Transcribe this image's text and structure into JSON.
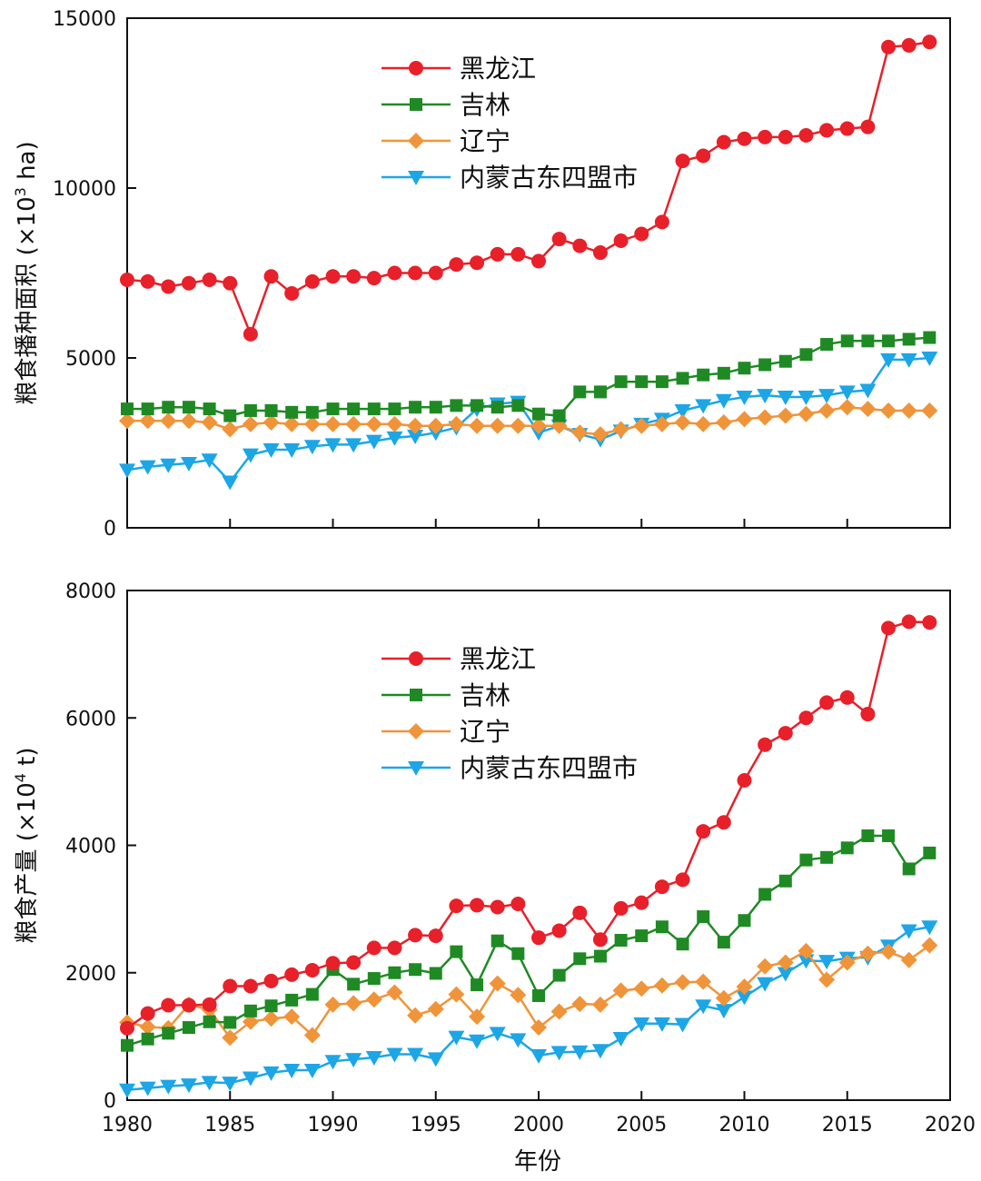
{
  "xlabel": "年份",
  "series_meta": [
    {
      "name": "黑龙江",
      "color": "#e8202a",
      "marker": "circle"
    },
    {
      "name": "吉林",
      "color": "#1f8a24",
      "marker": "square"
    },
    {
      "name": "辽宁",
      "color": "#f0943a",
      "marker": "diamond"
    },
    {
      "name": "内蒙古东四盟市",
      "color": "#1ca6e6",
      "marker": "triangle-down"
    }
  ],
  "chart_data": [
    {
      "type": "line",
      "ylabel_main": "粮食播种面积 (×10",
      "ylabel_sup": "3",
      "ylabel_tail": " ha)",
      "x": [
        1980,
        1981,
        1982,
        1983,
        1984,
        1985,
        1986,
        1987,
        1988,
        1989,
        1990,
        1991,
        1992,
        1993,
        1994,
        1995,
        1996,
        1997,
        1998,
        1999,
        2000,
        2001,
        2002,
        2003,
        2004,
        2005,
        2006,
        2007,
        2008,
        2009,
        2010,
        2011,
        2012,
        2013,
        2014,
        2015,
        2016,
        2017,
        2018,
        2019
      ],
      "xlim": [
        1980,
        2020
      ],
      "xticks": [
        1980,
        1985,
        1990,
        1995,
        2000,
        2005,
        2010,
        2015,
        2020
      ],
      "ylim": [
        0,
        15000
      ],
      "yticks": [
        0,
        5000,
        10000,
        15000
      ],
      "series": [
        {
          "name": "黑龙江",
          "values": [
            7300,
            7250,
            7100,
            7200,
            7300,
            7200,
            5700,
            7400,
            6900,
            7250,
            7400,
            7400,
            7350,
            7500,
            7500,
            7500,
            7750,
            7800,
            8050,
            8050,
            7850,
            8500,
            8300,
            8100,
            8450,
            8650,
            9000,
            10800,
            10950,
            11350,
            11450,
            11500,
            11500,
            11550,
            11700,
            11750,
            11800,
            14150,
            14200,
            14300
          ]
        },
        {
          "name": "吉林",
          "values": [
            3500,
            3500,
            3550,
            3550,
            3500,
            3300,
            3450,
            3450,
            3400,
            3400,
            3500,
            3500,
            3500,
            3500,
            3550,
            3550,
            3600,
            3600,
            3550,
            3600,
            3350,
            3300,
            4000,
            4000,
            4300,
            4300,
            4300,
            4400,
            4500,
            4550,
            4700,
            4800,
            4900,
            5100,
            5400,
            5500,
            5500,
            5500,
            5550,
            5600
          ]
        },
        {
          "name": "辽宁",
          "values": [
            3150,
            3150,
            3150,
            3150,
            3100,
            2900,
            3050,
            3100,
            3050,
            3050,
            3050,
            3050,
            3050,
            3050,
            3000,
            3000,
            3050,
            3000,
            3000,
            3000,
            3000,
            3000,
            2800,
            2750,
            2900,
            3000,
            3050,
            3100,
            3050,
            3100,
            3200,
            3250,
            3300,
            3350,
            3450,
            3550,
            3500,
            3450,
            3450,
            3450
          ]
        },
        {
          "name": "内蒙古东四盟市",
          "values": [
            1700,
            1800,
            1850,
            1900,
            2000,
            1350,
            2150,
            2300,
            2300,
            2400,
            2450,
            2450,
            2550,
            2650,
            2700,
            2800,
            2950,
            3500,
            3650,
            3700,
            2800,
            3000,
            2750,
            2600,
            2850,
            3050,
            3200,
            3450,
            3600,
            3750,
            3850,
            3900,
            3850,
            3850,
            3900,
            4000,
            4050,
            4950,
            4950,
            5000
          ]
        }
      ]
    },
    {
      "type": "line",
      "ylabel_main": "粮食产量 (×10",
      "ylabel_sup": "4",
      "ylabel_tail": " t)",
      "x": [
        1980,
        1981,
        1982,
        1983,
        1984,
        1985,
        1986,
        1987,
        1988,
        1989,
        1990,
        1991,
        1992,
        1993,
        1994,
        1995,
        1996,
        1997,
        1998,
        1999,
        2000,
        2001,
        2002,
        2003,
        2004,
        2005,
        2006,
        2007,
        2008,
        2009,
        2010,
        2011,
        2012,
        2013,
        2014,
        2015,
        2016,
        2017,
        2018,
        2019
      ],
      "xlim": [
        1980,
        2020
      ],
      "xticks": [
        1980,
        1985,
        1990,
        1995,
        2000,
        2005,
        2010,
        2015,
        2020
      ],
      "ylim": [
        0,
        8000
      ],
      "yticks": [
        0,
        2000,
        4000,
        6000,
        8000
      ],
      "series": [
        {
          "name": "黑龙江",
          "values": [
            1130,
            1360,
            1490,
            1490,
            1500,
            1790,
            1790,
            1870,
            1970,
            2040,
            2150,
            2160,
            2390,
            2390,
            2590,
            2580,
            3050,
            3060,
            3030,
            3080,
            2550,
            2660,
            2940,
            2520,
            3010,
            3100,
            3350,
            3460,
            4220,
            4360,
            5020,
            5580,
            5760,
            6000,
            6240,
            6320,
            6060,
            7410,
            7510,
            7500
          ]
        },
        {
          "name": "吉林",
          "values": [
            860,
            960,
            1050,
            1140,
            1230,
            1220,
            1400,
            1480,
            1570,
            1660,
            2050,
            1820,
            1910,
            2000,
            2050,
            1990,
            2330,
            1810,
            2500,
            2300,
            1640,
            1960,
            2220,
            2260,
            2510,
            2580,
            2720,
            2450,
            2880,
            2480,
            2820,
            3230,
            3440,
            3770,
            3810,
            3960,
            4150,
            4150,
            3630,
            3880
          ]
        },
        {
          "name": "辽宁",
          "values": [
            1220,
            1150,
            1130,
            1500,
            1420,
            980,
            1230,
            1280,
            1310,
            1020,
            1500,
            1520,
            1580,
            1690,
            1330,
            1430,
            1660,
            1310,
            1830,
            1650,
            1140,
            1390,
            1510,
            1500,
            1720,
            1750,
            1800,
            1850,
            1860,
            1600,
            1780,
            2100,
            2160,
            2340,
            1890,
            2160,
            2300,
            2330,
            2200,
            2430
          ]
        },
        {
          "name": "内蒙古东四盟市",
          "values": [
            160,
            190,
            220,
            240,
            280,
            270,
            350,
            430,
            470,
            470,
            610,
            640,
            670,
            720,
            720,
            650,
            990,
            930,
            1050,
            950,
            700,
            750,
            760,
            780,
            970,
            1200,
            1200,
            1190,
            1480,
            1410,
            1620,
            1830,
            1990,
            2190,
            2180,
            2230,
            2240,
            2420,
            2660,
            2720
          ]
        }
      ]
    }
  ]
}
